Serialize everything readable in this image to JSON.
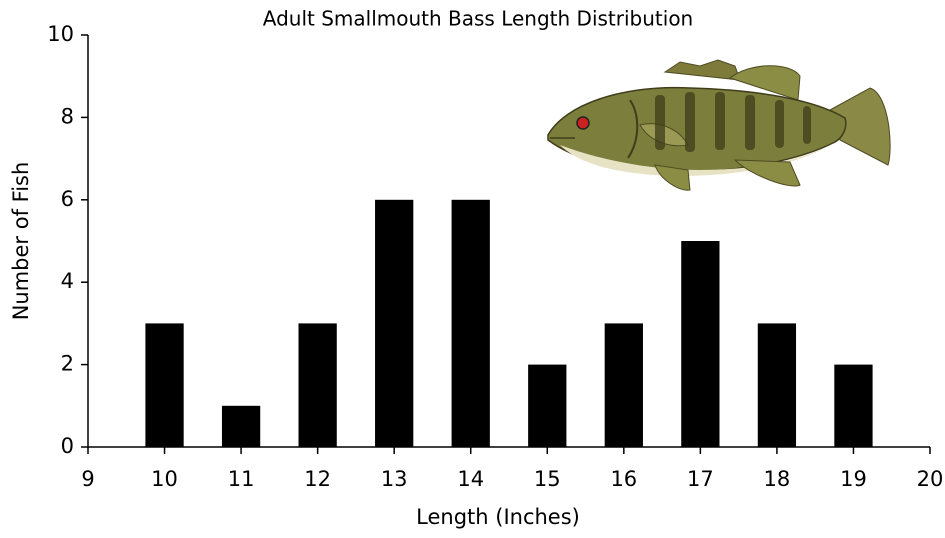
{
  "chart_data": {
    "type": "bar",
    "title": "Adult Smallmouth Bass Length Distribution",
    "x_label": "Length (Inches)",
    "y_label": "Number of Fish",
    "x": [
      10,
      11,
      12,
      13,
      14,
      15,
      16,
      17,
      18,
      19
    ],
    "values": [
      3,
      1,
      3,
      6,
      6,
      2,
      3,
      5,
      3,
      2
    ],
    "color": "#000000",
    "xlim": [
      9,
      20
    ],
    "xticks": [
      9,
      10,
      11,
      12,
      13,
      14,
      15,
      16,
      17,
      18,
      19,
      20
    ],
    "ylim": [
      0,
      10
    ],
    "yticks": [
      0,
      2,
      4,
      6,
      8,
      10
    ],
    "grid": false
  }
}
